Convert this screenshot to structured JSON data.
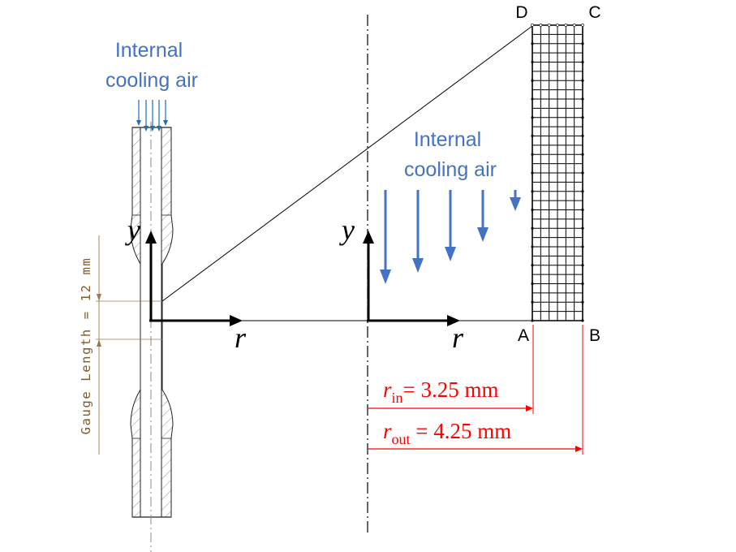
{
  "specimen": {
    "air_label": [
      "Internal",
      "cooling air"
    ],
    "gauge_label": "Gauge Length = 12 mm",
    "axis_y": "y",
    "axis_r": "r"
  },
  "model": {
    "air_label": [
      "Internal",
      "cooling air"
    ],
    "axis_y": "y",
    "axis_r": "r",
    "corners": {
      "A": "A",
      "B": "B",
      "C": "C",
      "D": "D"
    },
    "r_in": {
      "symbol": "r",
      "subscript": "in",
      "text": "= 3.25 mm"
    },
    "r_out": {
      "symbol": "r",
      "subscript": "out",
      "text": " = 4.25 mm"
    }
  },
  "colors": {
    "air_text": "#4472c4",
    "air_arrow": "#4472c4",
    "small_arrow": "#1f6fb5",
    "gauge": "#7f5a2a",
    "dimension": "#ff0000",
    "line": "#000000"
  }
}
